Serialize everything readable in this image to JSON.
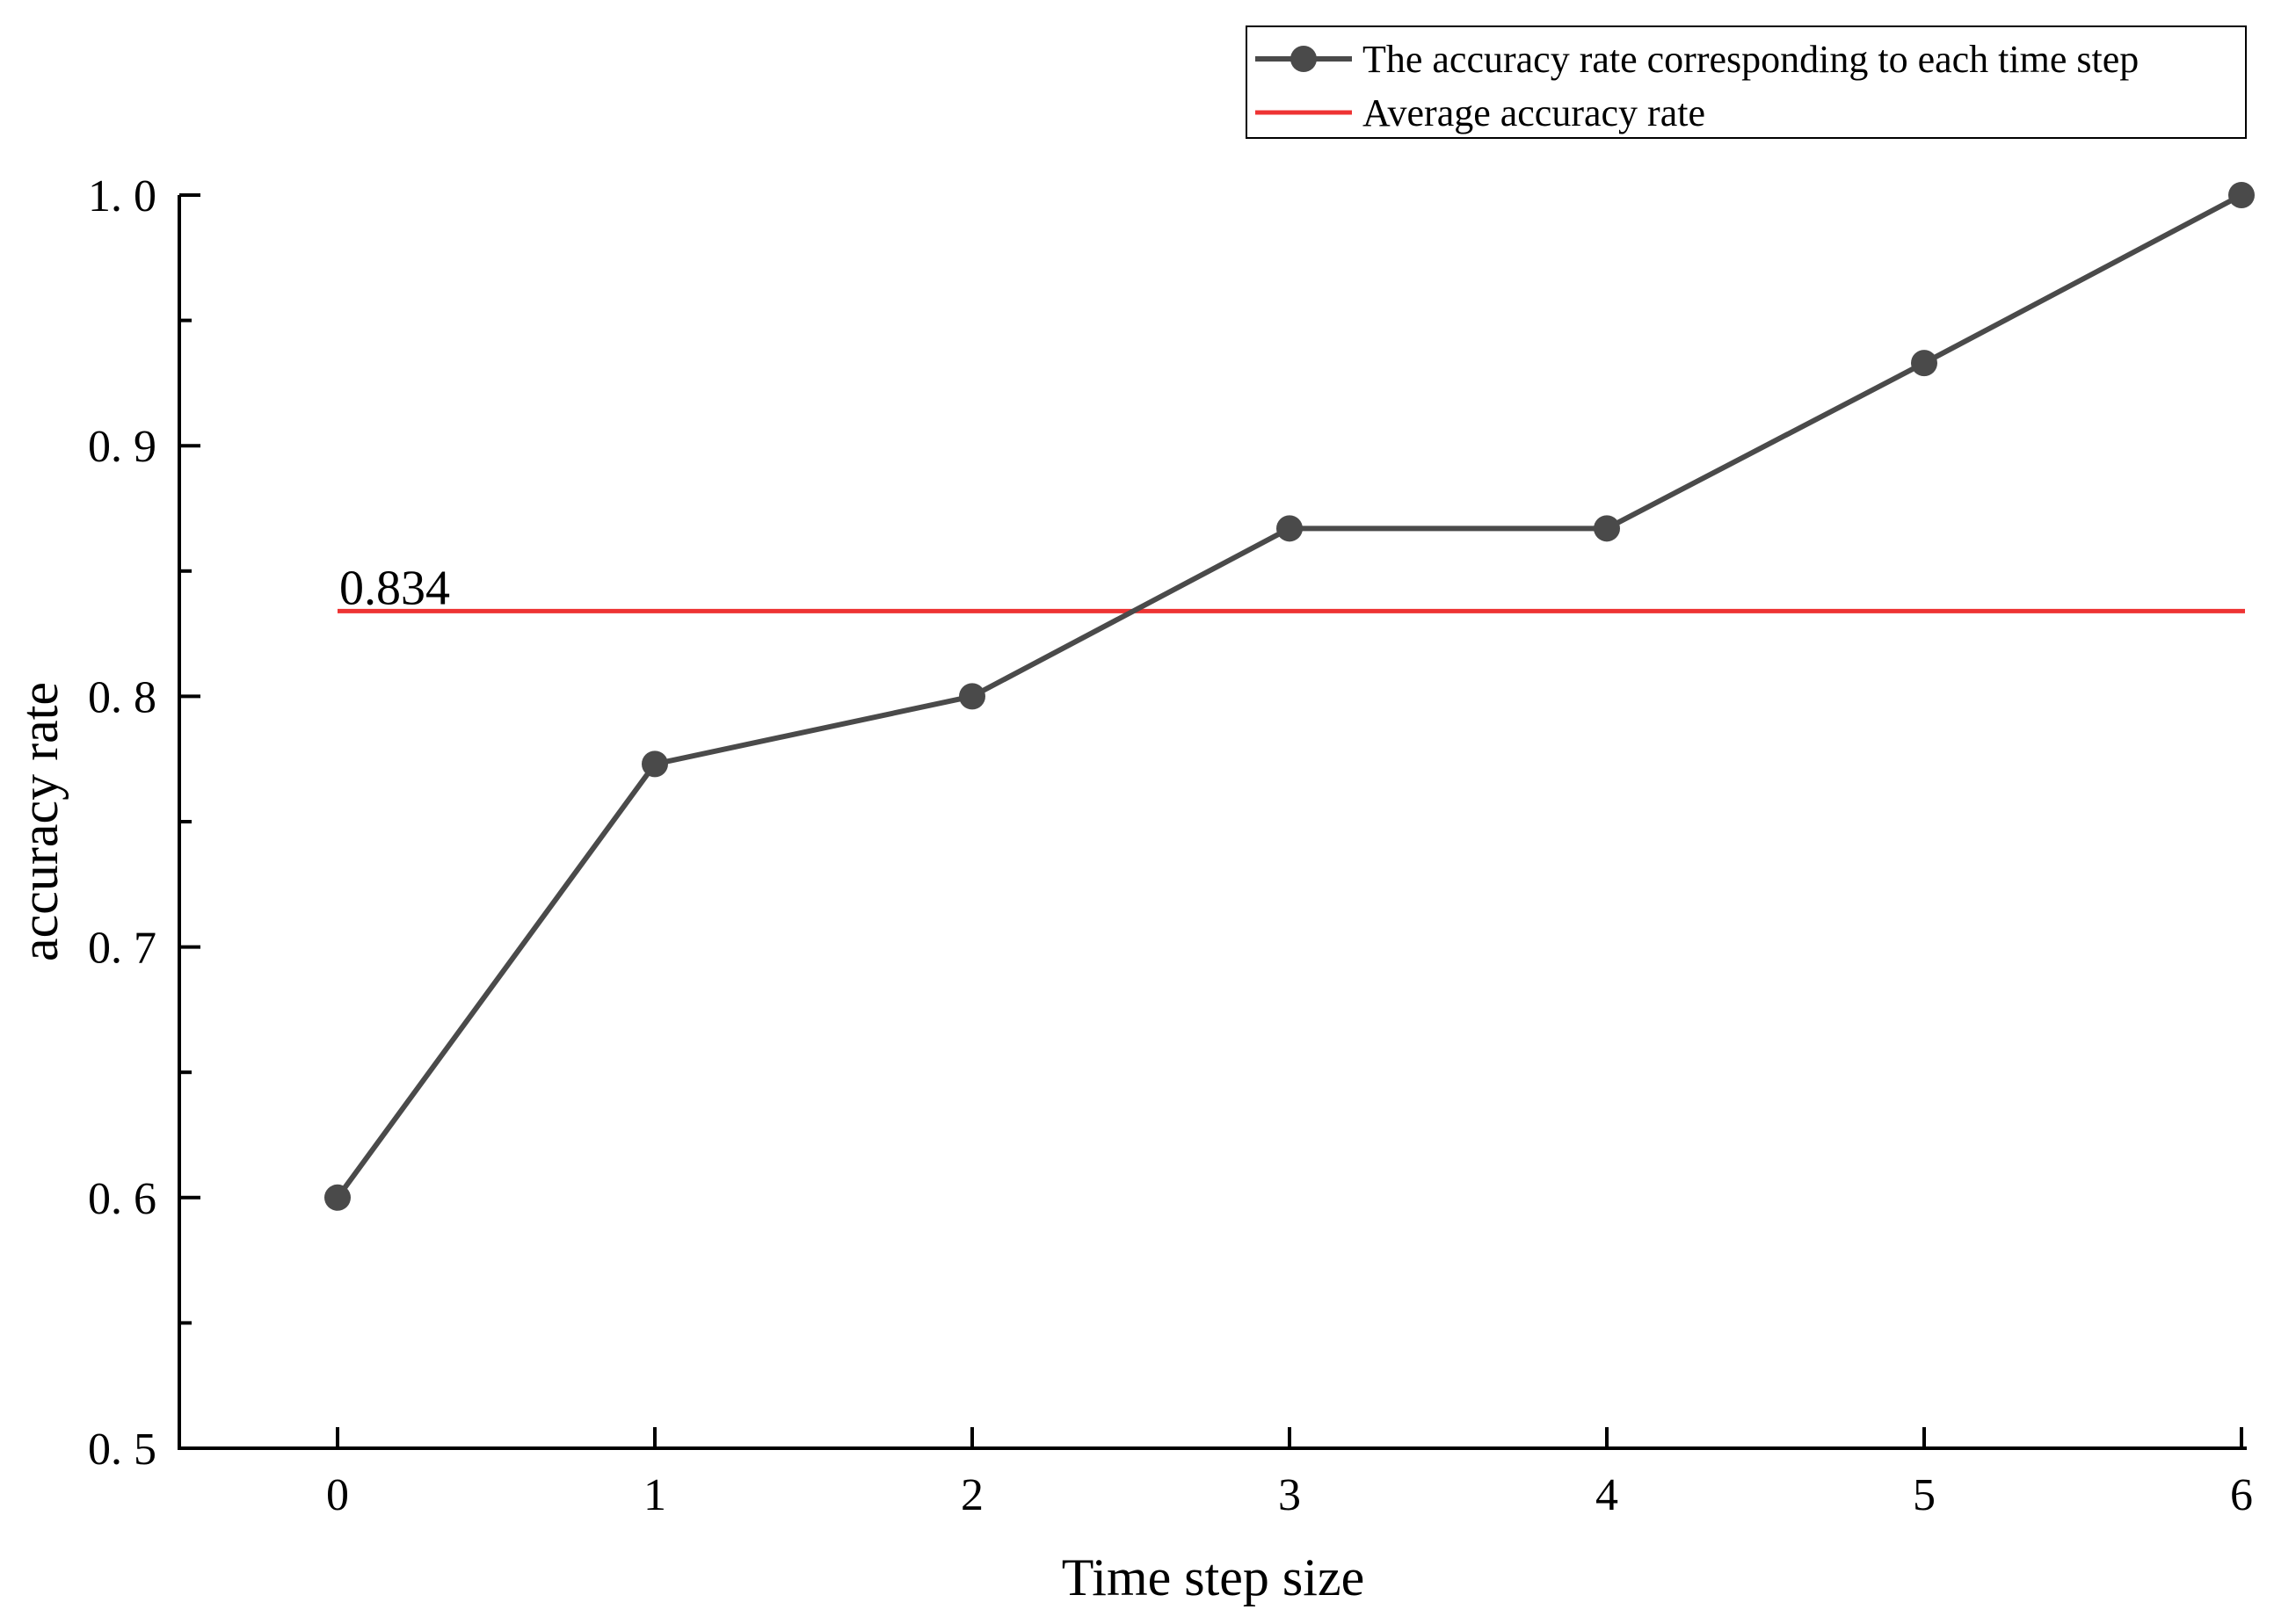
{
  "chart_data": {
    "type": "line",
    "title": "",
    "xlabel": "Time step size",
    "ylabel": "accuracy rate",
    "x": [
      0,
      1,
      2,
      3,
      4,
      5,
      6
    ],
    "x_tick_labels": [
      "0",
      "1",
      "2",
      "3",
      "4",
      "5",
      "6"
    ],
    "y_tick_labels": [
      "0. 5",
      "0. 6",
      "0. 7",
      "0. 8",
      "0. 9",
      "1. 0"
    ],
    "y_ticks": [
      0.5,
      0.6,
      0.7,
      0.8,
      0.9,
      1.0
    ],
    "xlim": [
      -0.5,
      6
    ],
    "ylim": [
      0.5,
      1.0
    ],
    "grid": false,
    "legend_position": "top-right",
    "series": [
      {
        "name": "The accuracy rate corresponding to each time step",
        "values": [
          0.6,
          0.773,
          0.8,
          0.867,
          0.867,
          0.933,
          1.0
        ],
        "color": "#4a4a4a",
        "marker": "circle"
      },
      {
        "name": "Average accuracy rate",
        "type": "hline",
        "value": 0.834,
        "x_range": [
          0,
          6
        ],
        "color": "#ee3333"
      }
    ],
    "annotations": [
      {
        "text": "0.834"
      }
    ]
  }
}
